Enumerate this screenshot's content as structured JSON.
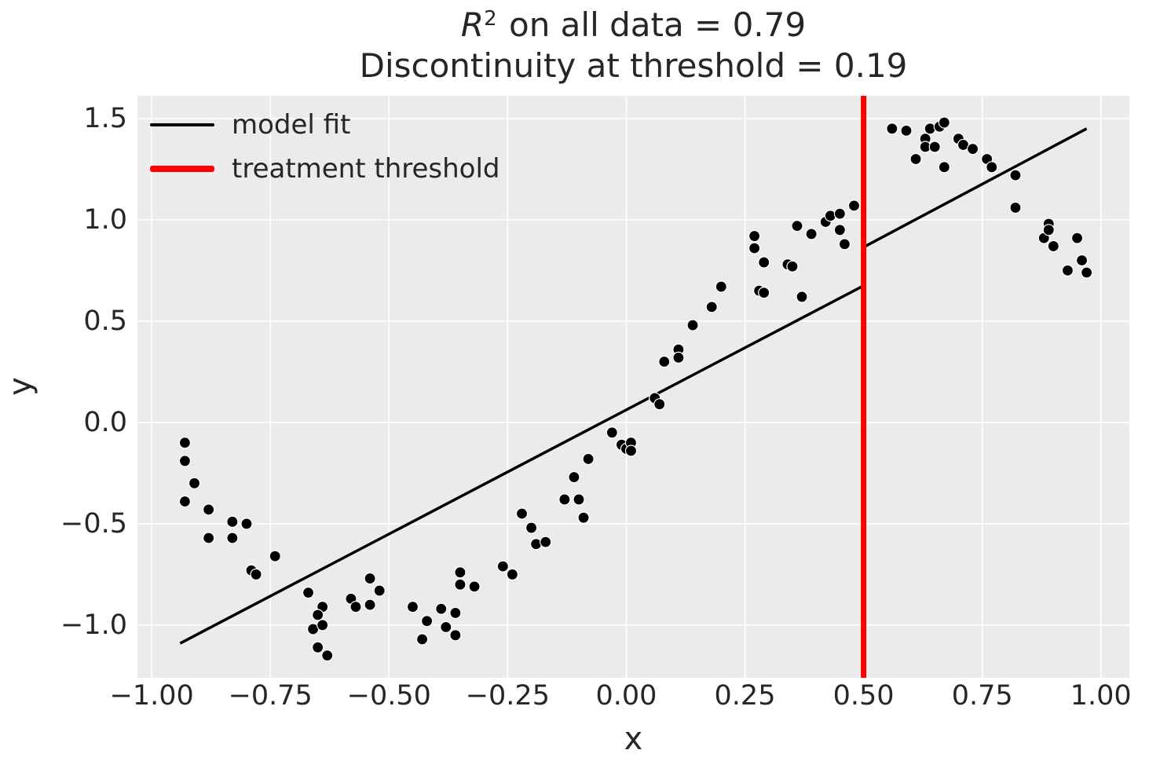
{
  "title": {
    "r_symbol": "R",
    "exponent": "2",
    "line1_rest": " on all data = 0.79",
    "line2": "Discontinuity at threshold = 0.19"
  },
  "axes": {
    "xlabel": "x",
    "ylabel": "y"
  },
  "legend": {
    "position": "upper left",
    "items": [
      {
        "label": "model fit",
        "color": "#000000",
        "thickness": 4
      },
      {
        "label": "treatment threshold",
        "color": "#ff0000",
        "thickness": 8
      }
    ]
  },
  "colors": {
    "axes_background": "#EBEBEB",
    "grid": "#ffffff",
    "text": "#262626",
    "scatter_fill": "#000000",
    "scatter_edge": "#ffffff",
    "fit_line": "#000000",
    "threshold_line": "#ff0000",
    "figure_background": "#ffffff"
  },
  "chart_data": {
    "type": "scatter",
    "title": "R^2 on all data = 0.79\nDiscontinuity at threshold = 0.19",
    "xlabel": "x",
    "ylabel": "y",
    "r_squared": 0.79,
    "discontinuity": 0.19,
    "threshold_x": 0.5,
    "xlim": [
      -1.03,
      1.06
    ],
    "ylim": [
      -1.26,
      1.612
    ],
    "grid": true,
    "x_ticks": {
      "values": [
        -1.0,
        -0.75,
        -0.5,
        -0.25,
        0.0,
        0.25,
        0.5,
        0.75,
        1.0
      ],
      "labels": [
        "−1.00",
        "−0.75",
        "−0.50",
        "−0.25",
        "0.00",
        "0.25",
        "0.50",
        "0.75",
        "1.00"
      ]
    },
    "y_ticks": {
      "values": [
        1.5,
        1.0,
        0.5,
        0.0,
        -0.5,
        -1.0
      ],
      "labels": [
        "1.5",
        "1.0",
        "0.5",
        "0.0",
        "−0.5",
        "−1.0"
      ]
    },
    "fit_line": [
      [
        -0.94,
        -1.09
      ],
      [
        0.5,
        0.675
      ],
      [
        0.5,
        0.865
      ],
      [
        0.97,
        1.45
      ]
    ],
    "points": [
      [
        -0.93,
        -0.1
      ],
      [
        -0.93,
        -0.19
      ],
      [
        -0.91,
        -0.3
      ],
      [
        -0.93,
        -0.39
      ],
      [
        -0.88,
        -0.43
      ],
      [
        -0.83,
        -0.49
      ],
      [
        -0.8,
        -0.5
      ],
      [
        -0.88,
        -0.57
      ],
      [
        -0.83,
        -0.57
      ],
      [
        -0.74,
        -0.66
      ],
      [
        -0.79,
        -0.73
      ],
      [
        -0.78,
        -0.75
      ],
      [
        -0.67,
        -0.84
      ],
      [
        -0.64,
        -0.91
      ],
      [
        -0.65,
        -0.95
      ],
      [
        -0.66,
        -1.02
      ],
      [
        -0.64,
        -1.0
      ],
      [
        -0.65,
        -1.11
      ],
      [
        -0.63,
        -1.15
      ],
      [
        -0.58,
        -0.87
      ],
      [
        -0.57,
        -0.91
      ],
      [
        -0.54,
        -0.9
      ],
      [
        -0.54,
        -0.77
      ],
      [
        -0.52,
        -0.83
      ],
      [
        -0.45,
        -0.91
      ],
      [
        -0.42,
        -0.98
      ],
      [
        -0.43,
        -1.07
      ],
      [
        -0.39,
        -0.92
      ],
      [
        -0.36,
        -0.94
      ],
      [
        -0.38,
        -1.01
      ],
      [
        -0.36,
        -1.05
      ],
      [
        -0.35,
        -0.74
      ],
      [
        -0.35,
        -0.8
      ],
      [
        -0.32,
        -0.81
      ],
      [
        -0.26,
        -0.71
      ],
      [
        -0.24,
        -0.75
      ],
      [
        -0.22,
        -0.45
      ],
      [
        -0.2,
        -0.52
      ],
      [
        -0.19,
        -0.6
      ],
      [
        -0.17,
        -0.59
      ],
      [
        -0.13,
        -0.38
      ],
      [
        -0.1,
        -0.38
      ],
      [
        -0.09,
        -0.47
      ],
      [
        -0.11,
        -0.27
      ],
      [
        -0.08,
        -0.18
      ],
      [
        -0.03,
        -0.05
      ],
      [
        -0.01,
        -0.11
      ],
      [
        0.0,
        -0.13
      ],
      [
        0.01,
        -0.1
      ],
      [
        0.01,
        -0.14
      ],
      [
        0.06,
        0.12
      ],
      [
        0.07,
        0.09
      ],
      [
        0.08,
        0.3
      ],
      [
        0.11,
        0.36
      ],
      [
        0.11,
        0.32
      ],
      [
        0.14,
        0.48
      ],
      [
        0.18,
        0.57
      ],
      [
        0.2,
        0.67
      ],
      [
        0.27,
        0.92
      ],
      [
        0.27,
        0.86
      ],
      [
        0.29,
        0.79
      ],
      [
        0.28,
        0.65
      ],
      [
        0.29,
        0.64
      ],
      [
        0.34,
        0.78
      ],
      [
        0.35,
        0.77
      ],
      [
        0.36,
        0.97
      ],
      [
        0.39,
        0.93
      ],
      [
        0.37,
        0.62
      ],
      [
        0.42,
        0.99
      ],
      [
        0.43,
        1.02
      ],
      [
        0.45,
        1.03
      ],
      [
        0.45,
        0.95
      ],
      [
        0.46,
        0.88
      ],
      [
        0.48,
        1.07
      ],
      [
        0.56,
        1.45
      ],
      [
        0.59,
        1.44
      ],
      [
        0.61,
        1.3
      ],
      [
        0.63,
        1.4
      ],
      [
        0.63,
        1.36
      ],
      [
        0.64,
        1.45
      ],
      [
        0.65,
        1.36
      ],
      [
        0.66,
        1.46
      ],
      [
        0.67,
        1.48
      ],
      [
        0.67,
        1.26
      ],
      [
        0.7,
        1.4
      ],
      [
        0.71,
        1.37
      ],
      [
        0.73,
        1.35
      ],
      [
        0.76,
        1.3
      ],
      [
        0.77,
        1.26
      ],
      [
        0.82,
        1.22
      ],
      [
        0.82,
        1.06
      ],
      [
        0.88,
        0.91
      ],
      [
        0.89,
        0.98
      ],
      [
        0.89,
        0.95
      ],
      [
        0.9,
        0.87
      ],
      [
        0.93,
        0.75
      ],
      [
        0.95,
        0.91
      ],
      [
        0.96,
        0.8
      ],
      [
        0.97,
        0.74
      ]
    ]
  }
}
